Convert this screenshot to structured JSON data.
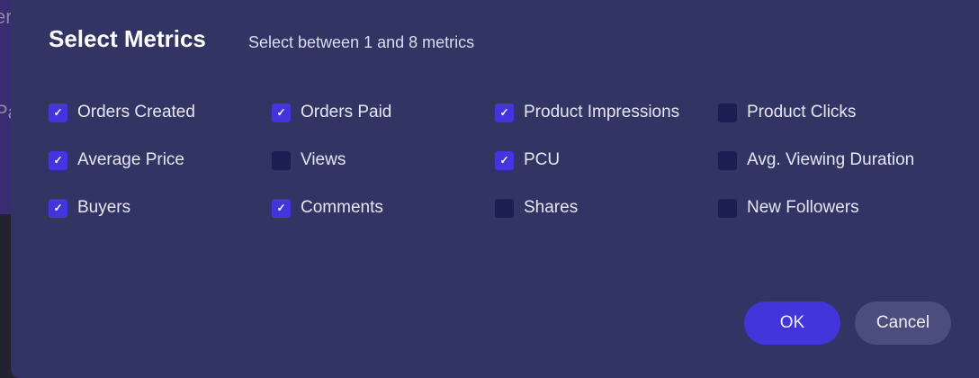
{
  "background": {
    "fragments": [
      "er",
      "Pa"
    ]
  },
  "dialog": {
    "title": "Select Metrics",
    "subtitle": "Select between 1 and 8 metrics",
    "metrics": [
      {
        "label": "Orders Created",
        "checked": true
      },
      {
        "label": "Orders Paid",
        "checked": true
      },
      {
        "label": "Product Impressions",
        "checked": true
      },
      {
        "label": "Product Clicks",
        "checked": false
      },
      {
        "label": "Average Price",
        "checked": true
      },
      {
        "label": "Views",
        "checked": false
      },
      {
        "label": "PCU",
        "checked": true
      },
      {
        "label": "Avg. Viewing Duration",
        "checked": false
      },
      {
        "label": "Buyers",
        "checked": true
      },
      {
        "label": "Comments",
        "checked": true
      },
      {
        "label": "Shares",
        "checked": false
      },
      {
        "label": "New Followers",
        "checked": false
      }
    ],
    "ok_label": "OK",
    "cancel_label": "Cancel",
    "colors": {
      "accent": "#4335dc",
      "dialog_bg": "#323464",
      "unchecked": "#1c1d52"
    }
  }
}
